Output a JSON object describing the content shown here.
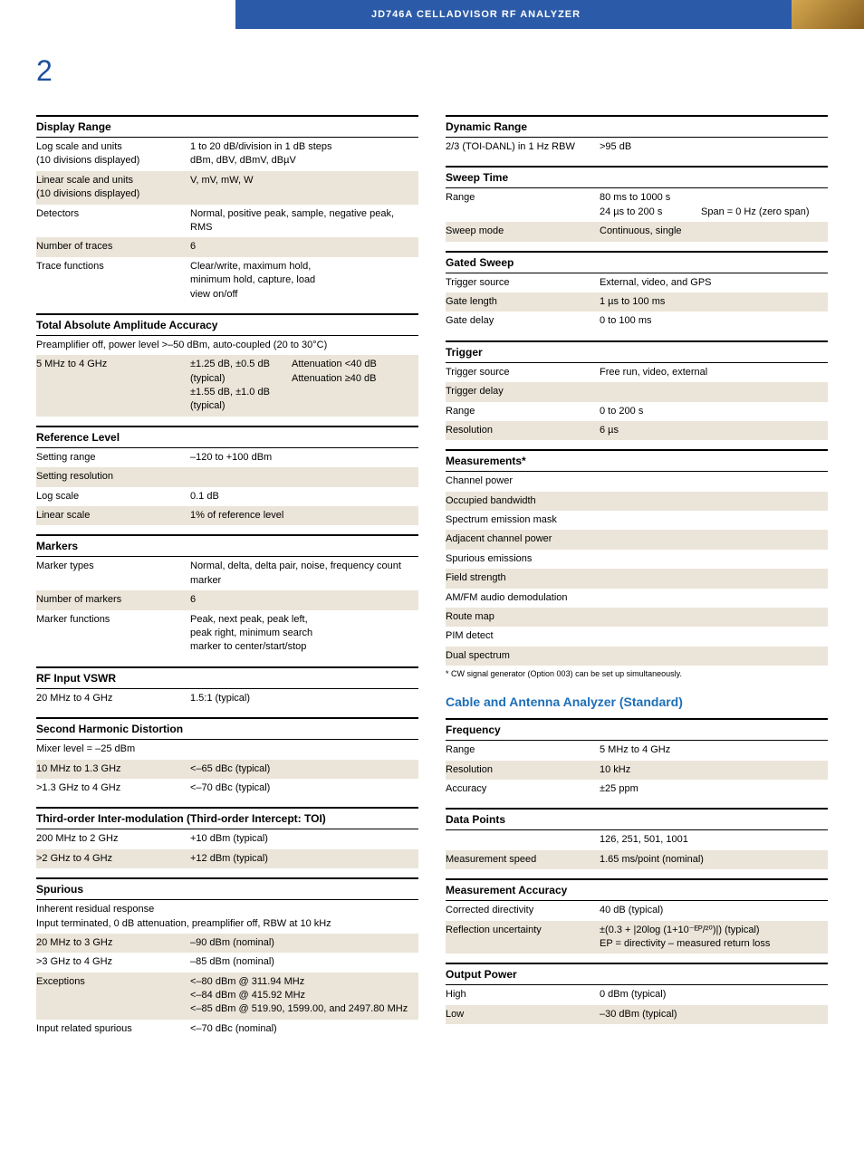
{
  "header": {
    "title": "JD746A CELLADVISOR RF ANALYZER",
    "page": "2"
  },
  "left": {
    "display_range": {
      "head": "Display Range",
      "rows": [
        {
          "k": "Log scale and units\n(10 divisions displayed)",
          "v": "1 to 20 dB/division in 1 dB steps\ndBm, dBV, dBmV, dBµV",
          "alt": false
        },
        {
          "k": "Linear scale and units\n(10 divisions displayed)",
          "v": "V, mV, mW, W",
          "alt": true
        },
        {
          "k": "Detectors",
          "v": "Normal, positive peak, sample, negative peak, RMS",
          "alt": false
        },
        {
          "k": "Number of traces",
          "v": "6",
          "alt": true
        },
        {
          "k": "Trace functions",
          "v": "Clear/write, maximum hold,\nminimum hold, capture, load\nview on/off",
          "alt": false
        }
      ]
    },
    "tot_abs": {
      "head": "Total Absolute Amplitude Accuracy",
      "note": "Preamplifier off, power level >–50 dBm, auto-coupled (20 to 30°C)",
      "rows": [
        {
          "k": "5 MHz to 4 GHz",
          "v": "±1.25 dB, ±0.5 dB (typical)\n±1.55 dB, ±1.0 dB (typical)",
          "w": "Attenuation <40 dB\nAttenuation ≥40 dB",
          "alt": true
        }
      ]
    },
    "ref_level": {
      "head": "Reference Level",
      "rows": [
        {
          "k": "Setting range",
          "v": "–120 to +100 dBm",
          "alt": false
        },
        {
          "k": "Setting resolution",
          "v": "",
          "alt": true
        },
        {
          "k": "Log scale",
          "v": "0.1 dB",
          "alt": false
        },
        {
          "k": "Linear scale",
          "v": "1% of reference level",
          "alt": true
        }
      ]
    },
    "markers": {
      "head": "Markers",
      "rows": [
        {
          "k": "Marker types",
          "v": "Normal, delta, delta pair, noise, frequency count marker",
          "alt": false
        },
        {
          "k": "Number of markers",
          "v": "6",
          "alt": true
        },
        {
          "k": "Marker functions",
          "v": "Peak, next peak, peak left,\npeak right, minimum search\nmarker to center/start/stop",
          "alt": false
        }
      ]
    },
    "rf_vswr": {
      "head": "RF Input VSWR",
      "rows": [
        {
          "k": "20 MHz to 4 GHz",
          "v": "1.5:1 (typical)",
          "alt": false
        }
      ]
    },
    "shd": {
      "head": "Second Harmonic Distortion",
      "rows": [
        {
          "k": "Mixer level = –25 dBm",
          "v": "",
          "alt": false
        },
        {
          "k": "10 MHz to 1.3 GHz",
          "v": "<–65 dBc (typical)",
          "alt": true
        },
        {
          "k": ">1.3 GHz to 4 GHz",
          "v": "<–70 dBc (typical)",
          "alt": false
        }
      ]
    },
    "toi": {
      "head": "Third-order Inter-modulation (Third-order Intercept: TOI)",
      "rows": [
        {
          "k": "200 MHz to 2 GHz",
          "v": "+10 dBm (typical)",
          "alt": false
        },
        {
          "k": ">2 GHz to 4 GHz",
          "v": "+12 dBm (typical)",
          "alt": true
        }
      ]
    },
    "spurious": {
      "head": "Spurious",
      "note": "Inherent residual response\nInput terminated, 0 dB attenuation, preamplifier off, RBW at 10 kHz",
      "rows": [
        {
          "k": "20 MHz to 3 GHz",
          "v": "–90 dBm (nominal)",
          "alt": true
        },
        {
          "k": ">3 GHz to 4 GHz",
          "v": "–85 dBm (nominal)",
          "alt": false
        },
        {
          "k": "Exceptions",
          "v": "<–80 dBm @ 311.94 MHz\n<–84 dBm @ 415.92 MHz\n<–85 dBm @ 519.90, 1599.00, and 2497.80 MHz",
          "alt": true
        },
        {
          "k": "Input related spurious",
          "v": "<–70 dBc (nominal)",
          "alt": false
        }
      ]
    }
  },
  "right": {
    "dyn_range": {
      "head": "Dynamic Range",
      "rows": [
        {
          "k": "2/3 (TOI-DANL) in 1 Hz RBW",
          "v": ">95 dB",
          "alt": false
        }
      ]
    },
    "sweep_time": {
      "head": "Sweep Time",
      "rows": [
        {
          "k": "Range",
          "v": "80 ms to 1000 s\n24 µs to 200 s",
          "w": "\nSpan = 0 Hz (zero span)",
          "alt": false
        },
        {
          "k": "Sweep mode",
          "v": "Continuous, single",
          "alt": true
        }
      ]
    },
    "gated_sweep": {
      "head": "Gated Sweep",
      "rows": [
        {
          "k": "Trigger source",
          "v": "External, video, and GPS",
          "alt": false
        },
        {
          "k": "Gate length",
          "v": "1 µs to 100 ms",
          "alt": true
        },
        {
          "k": "Gate delay",
          "v": "0 to 100 ms",
          "alt": false
        }
      ]
    },
    "trigger": {
      "head": "Trigger",
      "rows": [
        {
          "k": "Trigger source",
          "v": "Free run, video, external",
          "alt": false
        },
        {
          "k": "Trigger delay",
          "v": "",
          "alt": true
        },
        {
          "k": "Range",
          "v": "0 to 200 s",
          "alt": false
        },
        {
          "k": "Resolution",
          "v": "6 µs",
          "alt": true
        }
      ]
    },
    "measurements": {
      "head": "Measurements*",
      "items": [
        {
          "t": "Channel power",
          "alt": false
        },
        {
          "t": "Occupied bandwidth",
          "alt": true
        },
        {
          "t": "Spectrum emission mask",
          "alt": false
        },
        {
          "t": "Adjacent channel power",
          "alt": true
        },
        {
          "t": "Spurious emissions",
          "alt": false
        },
        {
          "t": "Field strength",
          "alt": true
        },
        {
          "t": "AM/FM audio demodulation",
          "alt": false
        },
        {
          "t": "Route map",
          "alt": true
        },
        {
          "t": "PIM detect",
          "alt": false
        },
        {
          "t": "Dual spectrum",
          "alt": true
        }
      ],
      "foot": "* CW signal generator (Option 003) can be set up simultaneously."
    },
    "caa_head": "Cable and Antenna Analyzer (Standard)",
    "frequency": {
      "head": "Frequency",
      "rows": [
        {
          "k": "Range",
          "v": "5 MHz to 4 GHz",
          "alt": false
        },
        {
          "k": "Resolution",
          "v": "10 kHz",
          "alt": true
        },
        {
          "k": "Accuracy",
          "v": "±25 ppm",
          "alt": false
        }
      ]
    },
    "data_points": {
      "head": "Data Points",
      "rows": [
        {
          "k": "",
          "v": "126, 251, 501, 1001",
          "alt": false
        },
        {
          "k": "Measurement speed",
          "v": "1.65 ms/point (nominal)",
          "alt": true
        }
      ]
    },
    "meas_acc": {
      "head": "Measurement Accuracy",
      "rows": [
        {
          "k": "Corrected directivity",
          "v": "40 dB (typical)",
          "alt": false
        },
        {
          "k": "Reflection uncertainty",
          "v": "±(0.3 + |20log (1+10⁻ᴱᴾ/²⁰)|) (typical)\nEP = directivity – measured return loss",
          "alt": true
        }
      ]
    },
    "output_power": {
      "head": "Output Power",
      "rows": [
        {
          "k": "High",
          "v": "0 dBm (typical)",
          "alt": false
        },
        {
          "k": "Low",
          "v": "–30 dBm (typical)",
          "alt": true
        }
      ]
    }
  }
}
